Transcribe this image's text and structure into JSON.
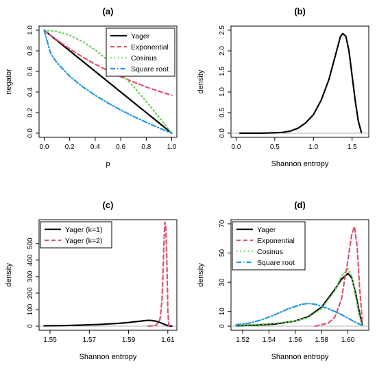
{
  "chart_data": [
    {
      "type": "line",
      "title": "(a)",
      "xlabel": "p",
      "ylabel": "negator",
      "xlim": [
        0,
        1
      ],
      "ylim": [
        0,
        1
      ],
      "xticks": [
        0,
        0.2,
        0.4,
        0.6,
        0.8,
        1
      ],
      "xtick_labels": [
        "0.0",
        "0.2",
        "0.4",
        "0.6",
        "0.8",
        "1.0"
      ],
      "yticks": [
        0,
        0.2,
        0.4,
        0.6,
        0.8,
        1
      ],
      "ytick_labels": [
        "0.0",
        "0.2",
        "0.4",
        "0.6",
        "0.8",
        "1.0"
      ],
      "legend_position": "top-right",
      "series": [
        {
          "name": "Yager",
          "color": "#000000",
          "dash": "solid",
          "x": [
            0,
            0.1,
            0.2,
            0.3,
            0.4,
            0.5,
            0.6,
            0.7,
            0.8,
            0.9,
            1.0
          ],
          "y": [
            1,
            0.9,
            0.8,
            0.7,
            0.6,
            0.5,
            0.4,
            0.3,
            0.2,
            0.1,
            0
          ]
        },
        {
          "name": "Exponential",
          "color": "#df536b",
          "dash": "dashed",
          "x": [
            0,
            0.1,
            0.2,
            0.3,
            0.4,
            0.5,
            0.6,
            0.7,
            0.8,
            0.9,
            1.0
          ],
          "y": [
            1,
            0.905,
            0.819,
            0.741,
            0.67,
            0.607,
            0.549,
            0.497,
            0.449,
            0.407,
            0.368
          ]
        },
        {
          "name": "Cosinus",
          "color": "#61d04f",
          "dash": "dotted",
          "x": [
            0,
            0.1,
            0.2,
            0.3,
            0.4,
            0.5,
            0.6,
            0.7,
            0.8,
            0.9,
            1.0
          ],
          "y": [
            1,
            0.988,
            0.951,
            0.891,
            0.809,
            0.707,
            0.588,
            0.454,
            0.309,
            0.156,
            0
          ]
        },
        {
          "name": "Square root",
          "color": "#2297e6",
          "dash": "dotdash",
          "x": [
            0,
            0.05,
            0.1,
            0.2,
            0.3,
            0.4,
            0.5,
            0.6,
            0.7,
            0.8,
            0.9,
            1.0
          ],
          "y": [
            1,
            0.776,
            0.684,
            0.553,
            0.452,
            0.368,
            0.293,
            0.225,
            0.163,
            0.106,
            0.051,
            0
          ]
        }
      ]
    },
    {
      "type": "line",
      "title": "(b)",
      "xlabel": "Shannon entropy",
      "ylabel": "density",
      "xlim": [
        0,
        1.65
      ],
      "ylim": [
        0,
        2.5
      ],
      "xticks": [
        0,
        0.5,
        1,
        1.5
      ],
      "xtick_labels": [
        "0.0",
        "0.5",
        "1.0",
        "1.5"
      ],
      "yticks": [
        0,
        0.5,
        1,
        1.5,
        2,
        2.5
      ],
      "ytick_labels": [
        "0.0",
        "0.5",
        "1.0",
        "1.5",
        "2.0",
        "2.5"
      ],
      "series": [
        {
          "name": "",
          "color": "#000000",
          "dash": "solid",
          "x": [
            0.05,
            0.3,
            0.5,
            0.6,
            0.7,
            0.8,
            0.9,
            1.0,
            1.1,
            1.2,
            1.3,
            1.35,
            1.38,
            1.42,
            1.46,
            1.5,
            1.54,
            1.58,
            1.62
          ],
          "y": [
            0,
            0,
            0.01,
            0.02,
            0.05,
            0.12,
            0.25,
            0.45,
            0.8,
            1.3,
            2.0,
            2.35,
            2.42,
            2.35,
            2.0,
            1.4,
            0.8,
            0.3,
            0.02
          ]
        }
      ]
    },
    {
      "type": "line",
      "title": "(c)",
      "xlabel": "Shannon entropy",
      "ylabel": "density",
      "xlim": [
        1.547,
        1.612
      ],
      "ylim": [
        0,
        620
      ],
      "xticks": [
        1.55,
        1.57,
        1.59,
        1.61
      ],
      "xtick_labels": [
        "1.55",
        "1.57",
        "1.59",
        "1.61"
      ],
      "yticks": [
        0,
        100,
        200,
        300,
        400,
        500
      ],
      "ytick_labels": [
        "0",
        "100",
        "200",
        "300",
        "400",
        "500"
      ],
      "legend_position": "top-left",
      "series": [
        {
          "name": "Yager (k=1)",
          "color": "#000000",
          "dash": "solid",
          "x": [
            1.547,
            1.555,
            1.565,
            1.575,
            1.585,
            1.59,
            1.595,
            1.598,
            1.6,
            1.602,
            1.604,
            1.606,
            1.608,
            1.61,
            1.612
          ],
          "y": [
            2,
            3,
            6,
            10,
            17,
            22,
            29,
            33,
            35,
            34,
            30,
            22,
            12,
            3,
            0
          ]
        },
        {
          "name": "Yager (k=2)",
          "color": "#df536b",
          "dash": "dashed",
          "x": [
            1.6,
            1.604,
            1.606,
            1.607,
            1.6075,
            1.608,
            1.6085,
            1.609,
            1.6095,
            1.61,
            1.6105
          ],
          "y": [
            0,
            5,
            40,
            150,
            300,
            500,
            630,
            600,
            400,
            100,
            0
          ]
        }
      ]
    },
    {
      "type": "line",
      "title": "(d)",
      "xlabel": "Shannon entropy",
      "ylabel": "density",
      "xlim": [
        1.515,
        1.612
      ],
      "ylim": [
        0,
        70
      ],
      "xticks": [
        1.52,
        1.54,
        1.56,
        1.58,
        1.6
      ],
      "xtick_labels": [
        "1.52",
        "1.54",
        "1.56",
        "1.58",
        "1.60"
      ],
      "yticks": [
        0,
        10,
        30,
        50,
        70
      ],
      "ytick_labels": [
        "0",
        "10",
        "30",
        "50",
        "70"
      ],
      "legend_position": "top-left",
      "series": [
        {
          "name": "Yager",
          "color": "#000000",
          "dash": "solid",
          "x": [
            1.515,
            1.53,
            1.545,
            1.56,
            1.57,
            1.58,
            1.59,
            1.595,
            1.6,
            1.603,
            1.606,
            1.609,
            1.611
          ],
          "y": [
            0.3,
            0.7,
            1.5,
            3.5,
            6.5,
            13,
            25,
            32,
            36,
            33,
            22,
            8,
            1
          ]
        },
        {
          "name": "Exponential",
          "color": "#df536b",
          "dash": "dashed",
          "x": [
            1.575,
            1.585,
            1.59,
            1.595,
            1.6,
            1.603,
            1.605,
            1.607,
            1.609,
            1.611
          ],
          "y": [
            0,
            2,
            6,
            18,
            45,
            63,
            68,
            55,
            25,
            3
          ]
        },
        {
          "name": "Cosinus",
          "color": "#61d04f",
          "dash": "dotted",
          "x": [
            1.515,
            1.53,
            1.545,
            1.56,
            1.57,
            1.58,
            1.59,
            1.595,
            1.6,
            1.603,
            1.606,
            1.609,
            1.611
          ],
          "y": [
            0.5,
            1,
            2,
            3.5,
            6,
            12,
            24,
            34,
            39,
            34,
            20,
            6,
            0
          ]
        },
        {
          "name": "Square root",
          "color": "#2297e6",
          "dash": "dotdash",
          "x": [
            1.515,
            1.525,
            1.535,
            1.545,
            1.555,
            1.565,
            1.57,
            1.575,
            1.585,
            1.595,
            1.605,
            1.611
          ],
          "y": [
            1,
            2,
            4.5,
            8,
            12,
            15,
            15.5,
            15,
            12,
            8,
            3,
            0.5
          ]
        }
      ]
    }
  ]
}
